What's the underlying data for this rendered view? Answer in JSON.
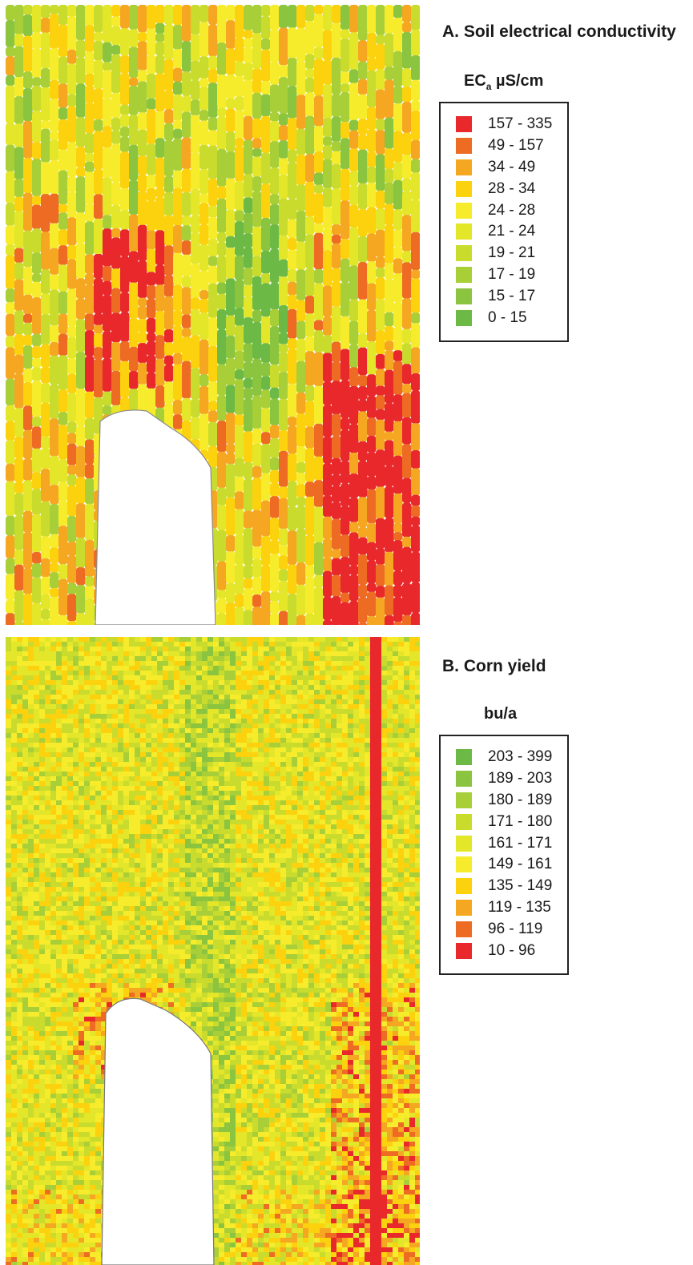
{
  "panels": [
    {
      "id": "a",
      "title": "A. Soil electrical conductivity",
      "legend_heading_main": "EC",
      "legend_heading_sub": "a",
      "legend_heading_unit": " µS/cm",
      "pattern": "bands",
      "classes": [
        {
          "label": "157 - 335",
          "color": "#e8282b"
        },
        {
          "label": "49 - 157",
          "color": "#ee6b24"
        },
        {
          "label": "34 - 49",
          "color": "#f6a722"
        },
        {
          "label": "28 - 34",
          "color": "#fbd20d"
        },
        {
          "label": "24 - 28",
          "color": "#f6ec2c"
        },
        {
          "label": "21 - 24",
          "color": "#e4e62a"
        },
        {
          "label": "19 - 21",
          "color": "#c9dc2e"
        },
        {
          "label": "17 - 19",
          "color": "#a8cf38"
        },
        {
          "label": "15 - 17",
          "color": "#8bc43f"
        },
        {
          "label": "0 - 15",
          "color": "#6cba45"
        }
      ]
    },
    {
      "id": "b",
      "title": "B. Corn yield",
      "legend_heading_main": "bu/a",
      "legend_heading_sub": "",
      "legend_heading_unit": "",
      "pattern": "grid",
      "classes": [
        {
          "label": "203 - 399",
          "color": "#6cba45"
        },
        {
          "label": "189 - 203",
          "color": "#8bc43f"
        },
        {
          "label": "180 - 189",
          "color": "#a8cf38"
        },
        {
          "label": "171 - 180",
          "color": "#c9dc2e"
        },
        {
          "label": "161 - 171",
          "color": "#e4e62a"
        },
        {
          "label": "149 - 161",
          "color": "#f6ec2c"
        },
        {
          "label": "135 - 149",
          "color": "#fbd20d"
        },
        {
          "label": "119 - 135",
          "color": "#f6a722"
        },
        {
          "label": "96 - 119",
          "color": "#ee6b24"
        },
        {
          "label": "10 - 96",
          "color": "#e8282b"
        }
      ]
    }
  ]
}
